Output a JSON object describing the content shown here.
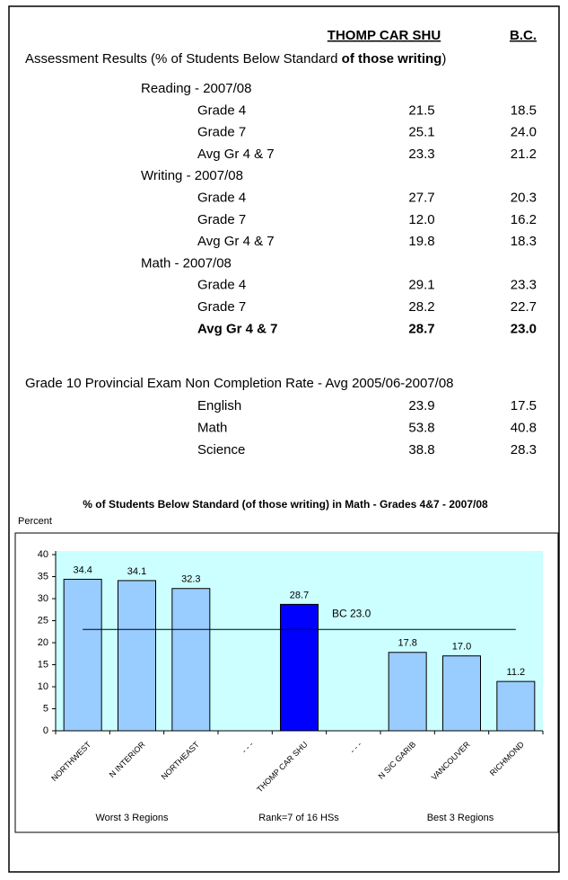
{
  "header": {
    "col1": "THOMP CAR SHU",
    "col2": "B.C."
  },
  "assessment": {
    "title_parts": [
      "Assessment Results (% of Students Below Standard ",
      "of those writing",
      ")"
    ],
    "sections": [
      {
        "name": "Reading - 2007/08",
        "rows": [
          {
            "label": "Grade 4",
            "v1": "21.5",
            "v2": "18.5"
          },
          {
            "label": "Grade 7",
            "v1": "25.1",
            "v2": "24.0"
          },
          {
            "label": "Avg Gr 4 & 7",
            "v1": "23.3",
            "v2": "21.2"
          }
        ]
      },
      {
        "name": "Writing - 2007/08",
        "rows": [
          {
            "label": "Grade 4",
            "v1": "27.7",
            "v2": "20.3"
          },
          {
            "label": "Grade 7",
            "v1": "12.0",
            "v2": "16.2"
          },
          {
            "label": "Avg Gr 4 & 7",
            "v1": "19.8",
            "v2": "18.3"
          }
        ]
      },
      {
        "name": "Math - 2007/08",
        "rows": [
          {
            "label": "Grade 4",
            "v1": "29.1",
            "v2": "23.3"
          },
          {
            "label": "Grade 7",
            "v1": "28.2",
            "v2": "22.7"
          },
          {
            "label": "Avg Gr 4 & 7",
            "v1": "28.7",
            "v2": "23.0",
            "bold": true
          }
        ]
      }
    ]
  },
  "grade10": {
    "title": "Grade 10 Provincial Exam Non Completion Rate - Avg 2005/06-2007/08",
    "rows": [
      {
        "label": "English",
        "v1": "23.9",
        "v2": "17.5"
      },
      {
        "label": "Math",
        "v1": "53.8",
        "v2": "40.8"
      },
      {
        "label": "Science",
        "v1": "38.8",
        "v2": "28.3"
      }
    ]
  },
  "chart_data": {
    "type": "bar",
    "title": "% of Students Below Standard (of those writing) in Math - Grades 4&7 - 2007/08",
    "y_label": "Percent",
    "categories": [
      "NORTHWEST",
      "N INTERIOR",
      "NORTHEAST",
      "- - -",
      "THOMP CAR SHU",
      "- - -",
      "N S/C GARIB",
      "VANCOUVER",
      "RICHMOND"
    ],
    "values": [
      34.4,
      34.1,
      32.3,
      null,
      28.7,
      null,
      17.8,
      17,
      11.2
    ],
    "value_labels": [
      "34.4",
      "34.1",
      "32.3",
      null,
      "28.7",
      null,
      "17.8",
      "17.0",
      "11.2"
    ],
    "colors": [
      "#99ccff",
      "#99ccff",
      "#99ccff",
      null,
      "#0000ff",
      null,
      "#99ccff",
      "#99ccff",
      "#99ccff"
    ],
    "ylim": [
      0,
      40
    ],
    "yticks": [
      0,
      5,
      10,
      15,
      20,
      25,
      30,
      35,
      40
    ],
    "reference": {
      "value": 23,
      "label": "BC 23.0"
    },
    "footnotes": [
      "Worst 3 Regions",
      "Rank=7 of 16 HSs",
      "Best 3 Regions"
    ]
  }
}
